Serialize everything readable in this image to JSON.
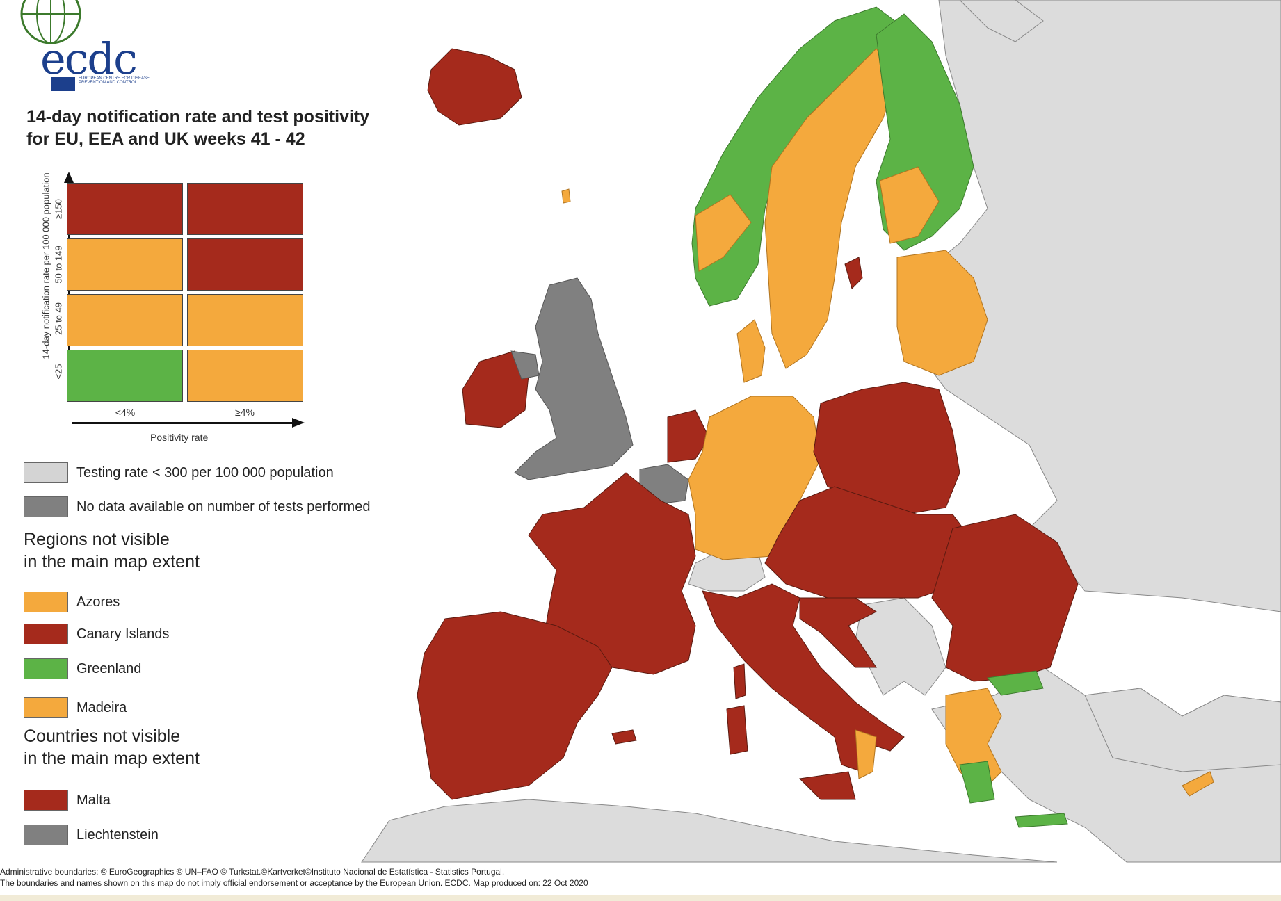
{
  "logo": {
    "text": "ecdc",
    "subtitle": "European Centre for Disease Prevention and Control"
  },
  "title": "14-day notification rate and test positivity\nfor EU, EEA and UK weeks 41 - 42",
  "matrix": {
    "y_title": "14-day notification rate per 100 000 population",
    "x_title": "Positivity rate",
    "rows": [
      "≥150",
      "50 to 149",
      "25 to 49",
      "<25"
    ],
    "cols": [
      "<4%",
      "≥4%"
    ],
    "cells": [
      [
        "#a52a1c",
        "#a52a1c"
      ],
      [
        "#f4a93d",
        "#a52a1c"
      ],
      [
        "#f4a93d",
        "#f4a93d"
      ],
      [
        "#5cb346",
        "#f4a93d"
      ]
    ]
  },
  "legend": {
    "testing_rate": {
      "label": "Testing rate < 300 per 100 000 population",
      "color": "#d4d4d4"
    },
    "no_data": {
      "label": "No data available on number of tests performed",
      "color": "#808080"
    }
  },
  "regions": {
    "heading": "Regions not visible\nin the main map extent",
    "items": [
      {
        "label": "Azores",
        "color": "#f4a93d"
      },
      {
        "label": "Canary Islands",
        "color": "#a52a1c"
      },
      {
        "label": "Greenland",
        "color": "#5cb346"
      },
      {
        "label": "Madeira",
        "color": "#f4a93d"
      }
    ]
  },
  "countries": {
    "heading": "Countries not visible\nin the main map extent",
    "items": [
      {
        "label": "Malta",
        "color": "#a52a1c"
      },
      {
        "label": "Liechtenstein",
        "color": "#808080"
      }
    ]
  },
  "footer": {
    "line1": "Administrative boundaries: © EuroGeographics © UN–FAO © Turkstat.©Kartverket©Instituto Nacional de Estatística - Statistics Portugal.",
    "line2": "The boundaries and names shown on this map do not imply official endorsement or acceptance by the European Union. ECDC. Map produced on: 22 Oct 2020"
  },
  "colors": {
    "red": "#a52a1c",
    "orange": "#f4a93d",
    "green": "#5cb346",
    "grey_dark": "#808080",
    "grey_light": "#d9d9d9",
    "sea": "#ffffff"
  }
}
